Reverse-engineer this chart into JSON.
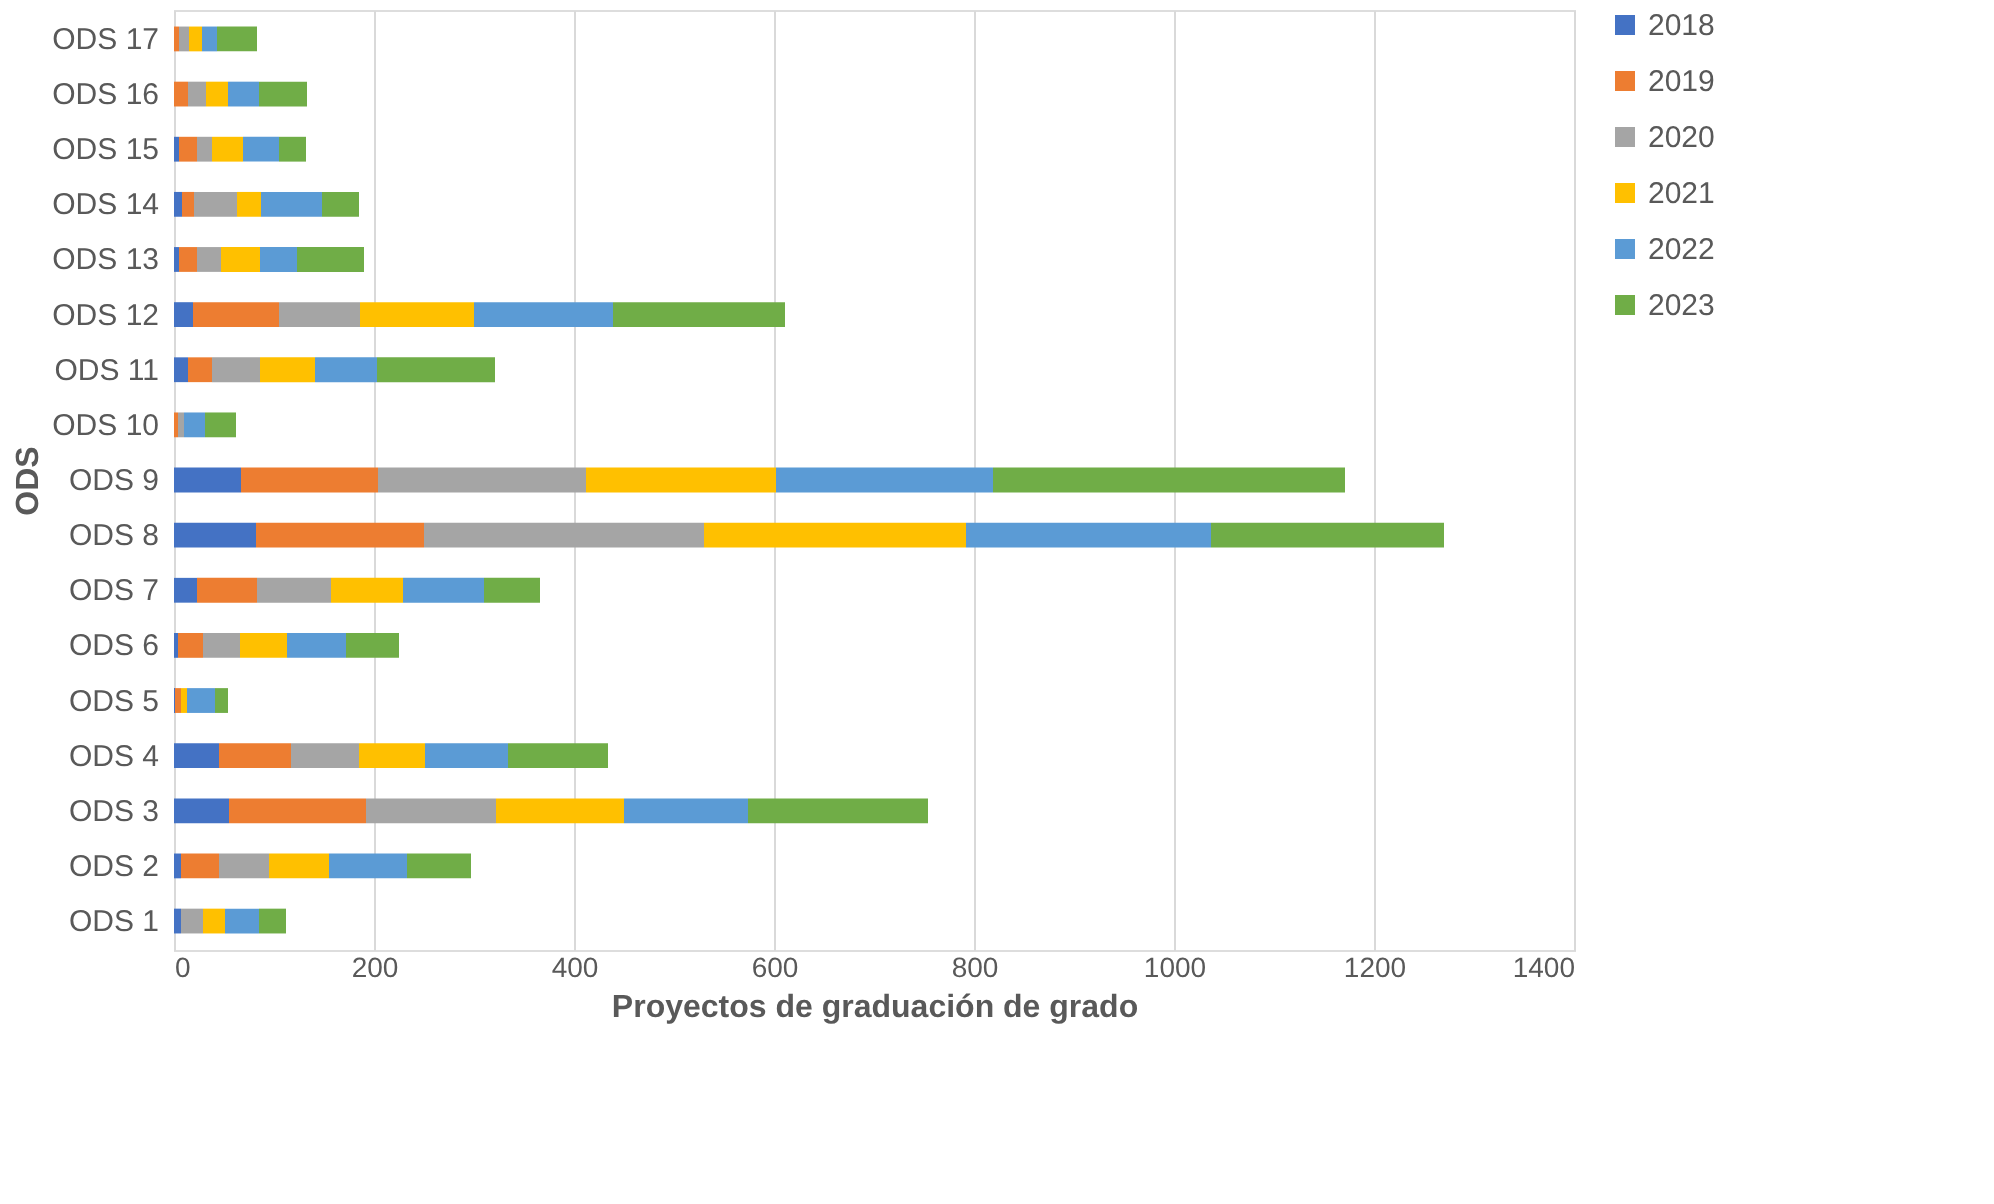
{
  "chart_data": {
    "type": "bar",
    "orientation": "horizontal",
    "stacked": true,
    "xlabel": "Proyectos  de graduación de grado",
    "ylabel": "ODS",
    "categories": [
      "ODS 17",
      "ODS 16",
      "ODS 15",
      "ODS 14",
      "ODS 13",
      "ODS 12",
      "ODS 11",
      "ODS 10",
      "ODS 9",
      "ODS 8",
      "ODS 7",
      "ODS 6",
      "ODS 5",
      "ODS 4",
      "ODS 3",
      "ODS 2",
      "ODS 1"
    ],
    "series": [
      {
        "name": "2018",
        "color": "#4472c4",
        "values": [
          0,
          0,
          5,
          8,
          5,
          19,
          14,
          0,
          67,
          82,
          23,
          4,
          1,
          45,
          55,
          7,
          7
        ]
      },
      {
        "name": "2019",
        "color": "#ed7d31",
        "values": [
          5,
          14,
          18,
          12,
          18,
          86,
          24,
          4,
          137,
          168,
          60,
          25,
          6,
          72,
          137,
          38,
          0
        ]
      },
      {
        "name": "2020",
        "color": "#a5a5a5",
        "values": [
          10,
          18,
          15,
          43,
          24,
          81,
          48,
          6,
          208,
          280,
          74,
          37,
          null,
          68,
          130,
          50,
          22
        ]
      },
      {
        "name": "2021",
        "color": "#ffc000",
        "values": [
          13,
          22,
          31,
          24,
          39,
          114,
          55,
          0,
          190,
          262,
          72,
          47,
          6,
          66,
          128,
          60,
          22
        ]
      },
      {
        "name": "2022",
        "color": "#5b9bd5",
        "values": [
          15,
          31,
          36,
          61,
          37,
          139,
          62,
          21,
          217,
          245,
          81,
          59,
          28,
          83,
          124,
          78,
          34
        ]
      },
      {
        "name": "2023",
        "color": "#70ad47",
        "values": [
          40,
          48,
          27,
          37,
          67,
          172,
          118,
          31,
          352,
          233,
          56,
          53,
          13,
          100,
          180,
          64,
          27
        ]
      }
    ],
    "xlim": [
      0,
      1400
    ],
    "xticks": [
      0,
      200,
      400,
      600,
      800,
      1000,
      1200,
      1400
    ],
    "grid": "x",
    "legend": "right"
  }
}
